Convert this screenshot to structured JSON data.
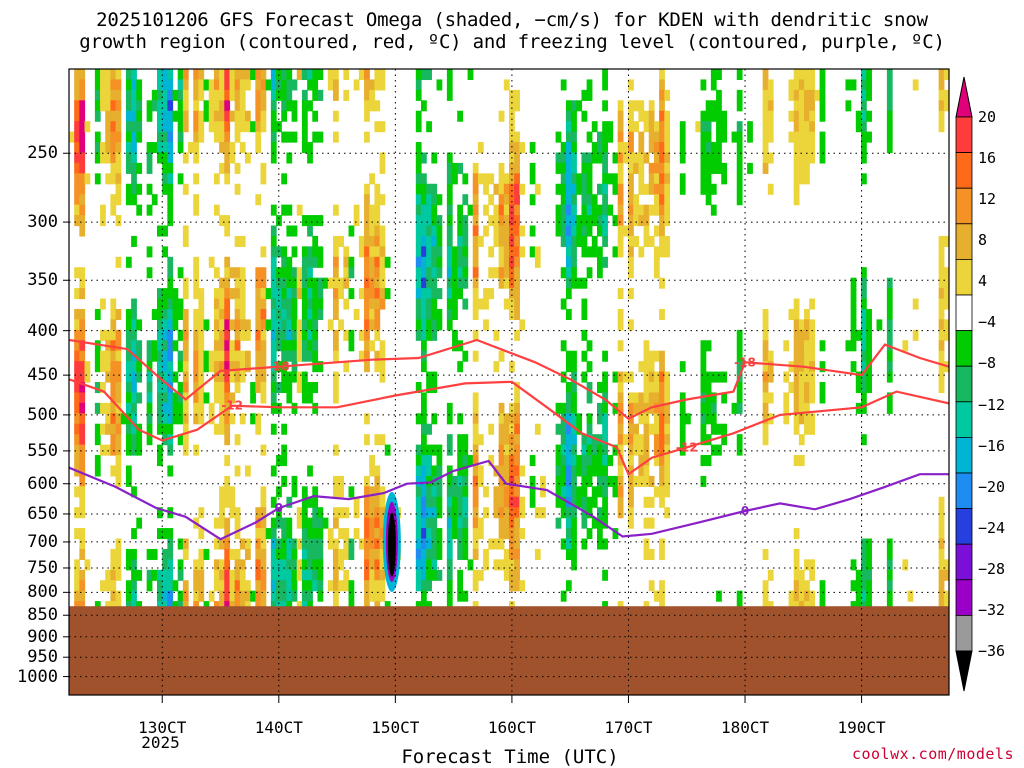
{
  "title_line1": "2025101206 GFS Forecast Omega (shaded, −cm/s) for KDEN with dendritic snow",
  "title_line2": "growth region (contoured, red, ºC) and freezing level (contoured, purple, ºC)",
  "credit": "coolwx.com/models",
  "chart_data": {
    "type": "heatmap",
    "title": "2025101206 GFS Forecast Omega (shaded, −cm/s) for KDEN with dendritic snow growth region (contoured, red, ºC) and freezing level (contoured, purple, ºC)",
    "xlabel": "Forecast Time (UTC)",
    "ylabel": "",
    "x_ticks": [
      "130CT",
      "140CT",
      "150CT",
      "160CT",
      "170CT",
      "180CT",
      "190CT"
    ],
    "x_tick_day": [
      13,
      14,
      15,
      16,
      17,
      18,
      19
    ],
    "x_year_label": "2025",
    "xlim_day": [
      12.2,
      19.75
    ],
    "y_ticks": [
      "250",
      "300",
      "350",
      "400",
      "450",
      "500",
      "550",
      "600",
      "650",
      "700",
      "750",
      "800",
      "850",
      "900",
      "950",
      "1000"
    ],
    "y_tick_values": [
      250,
      300,
      350,
      400,
      450,
      500,
      550,
      600,
      650,
      700,
      750,
      800,
      850,
      900,
      950,
      1000
    ],
    "ylim": [
      1050,
      200
    ],
    "y_scale": "log-pressure",
    "grid": true,
    "colorbar_labels": [
      "20",
      "16",
      "12",
      "8",
      "4",
      "−4",
      "−8",
      "−12",
      "−16",
      "−20",
      "−24",
      "−28",
      "−32",
      "−36"
    ],
    "colorbar_colors": [
      "#e0007a",
      "#ff3c3c",
      "#ff6a1a",
      "#f59226",
      "#e6b02e",
      "#ebd53a",
      "#ffffff",
      "#00cc00",
      "#18b860",
      "#00c8a0",
      "#00b4d6",
      "#1e8cf0",
      "#2640e0",
      "#7a10d8",
      "#9a00c8",
      "#9a9a9a",
      "#000000"
    ],
    "ground_color": "#a0522d",
    "surface_pressure_approx": 830,
    "contours": [
      {
        "label": "-18",
        "color": "#ff4040",
        "points": [
          [
            12.2,
            410
          ],
          [
            12.7,
            420
          ],
          [
            12.95,
            450
          ],
          [
            13.2,
            480
          ],
          [
            13.5,
            445
          ],
          [
            14.0,
            440
          ],
          [
            14.8,
            432
          ],
          [
            15.2,
            430
          ],
          [
            15.7,
            410
          ],
          [
            16.2,
            435
          ],
          [
            16.5,
            455
          ],
          [
            16.8,
            480
          ],
          [
            17.0,
            505
          ],
          [
            17.2,
            490
          ],
          [
            17.5,
            480
          ],
          [
            17.9,
            470
          ],
          [
            18.0,
            435
          ],
          [
            18.5,
            440
          ],
          [
            19.0,
            450
          ],
          [
            19.2,
            415
          ],
          [
            19.5,
            430
          ],
          [
            19.75,
            440
          ]
        ]
      },
      {
        "label": "-12",
        "color": "#ff4040",
        "points": [
          [
            12.2,
            455
          ],
          [
            12.5,
            470
          ],
          [
            12.8,
            520
          ],
          [
            13.0,
            535
          ],
          [
            13.3,
            520
          ],
          [
            13.6,
            488
          ],
          [
            14.0,
            490
          ],
          [
            14.5,
            490
          ],
          [
            15.0,
            475
          ],
          [
            15.6,
            460
          ],
          [
            16.0,
            458
          ],
          [
            16.3,
            490
          ],
          [
            16.6,
            525
          ],
          [
            16.9,
            545
          ],
          [
            17.0,
            585
          ],
          [
            17.2,
            560
          ],
          [
            17.5,
            545
          ],
          [
            17.9,
            525
          ],
          [
            18.3,
            500
          ],
          [
            19.0,
            490
          ],
          [
            19.3,
            470
          ],
          [
            19.75,
            485
          ]
        ]
      },
      {
        "label": "0",
        "color": "#8a20c8",
        "points": [
          [
            12.2,
            575
          ],
          [
            12.6,
            605
          ],
          [
            12.95,
            640
          ],
          [
            13.2,
            655
          ],
          [
            13.5,
            695
          ],
          [
            13.8,
            665
          ],
          [
            14.0,
            640
          ],
          [
            14.3,
            620
          ],
          [
            14.6,
            625
          ],
          [
            14.9,
            615
          ],
          [
            15.1,
            600
          ],
          [
            15.3,
            598
          ],
          [
            15.5,
            580
          ],
          [
            15.8,
            565
          ],
          [
            15.95,
            600
          ],
          [
            16.3,
            610
          ],
          [
            16.7,
            655
          ],
          [
            16.95,
            690
          ],
          [
            17.2,
            685
          ],
          [
            17.6,
            665
          ],
          [
            18.0,
            645
          ],
          [
            18.3,
            632
          ],
          [
            18.6,
            642
          ],
          [
            18.9,
            625
          ],
          [
            19.2,
            605
          ],
          [
            19.5,
            585
          ],
          [
            19.75,
            585
          ]
        ]
      }
    ]
  }
}
